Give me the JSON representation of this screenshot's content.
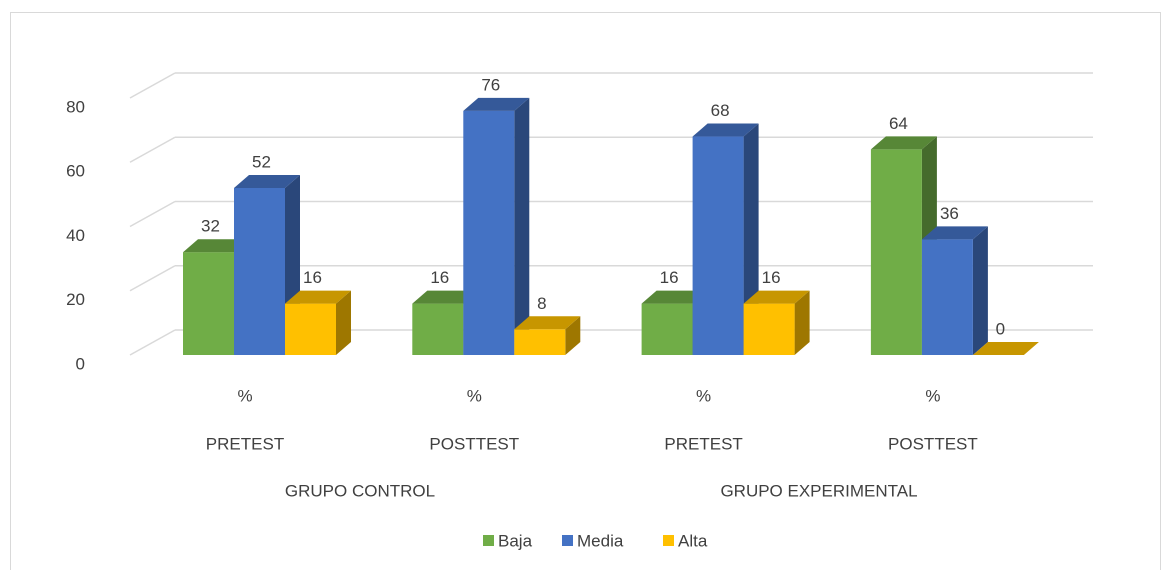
{
  "chart_data": {
    "type": "bar3d",
    "categories": [
      "%",
      "%",
      "%",
      "%"
    ],
    "subcategories": [
      "PRETEST",
      "POSTTEST",
      "PRETEST",
      "POSTTEST"
    ],
    "groups": [
      "GRUPO CONTROL",
      "GRUPO EXPERIMENTAL"
    ],
    "series": [
      {
        "name": "Baja",
        "color": "#70ad47",
        "values": [
          32,
          16,
          16,
          64
        ]
      },
      {
        "name": "Media",
        "color": "#4472c4",
        "values": [
          52,
          76,
          68,
          36
        ]
      },
      {
        "name": "Alta",
        "color": "#ffc000",
        "values": [
          16,
          8,
          16,
          0
        ]
      }
    ],
    "ylim": [
      0,
      80
    ],
    "yticks": [
      0,
      20,
      40,
      60,
      80
    ],
    "grid": true,
    "legend": "bottom"
  }
}
